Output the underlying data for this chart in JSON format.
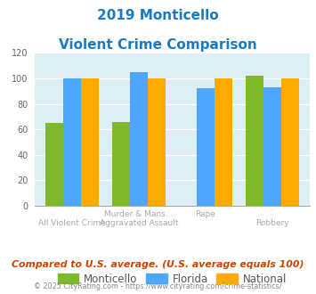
{
  "title_line1": "2019 Monticello",
  "title_line2": "Violent Crime Comparison",
  "monticello": [
    65,
    66,
    0,
    102
  ],
  "florida": [
    100,
    105,
    92,
    93
  ],
  "national": [
    100,
    100,
    100,
    100
  ],
  "monticello_color": "#7db928",
  "florida_color": "#4da6ff",
  "national_color": "#ffaa00",
  "bg_color": "#ddeef5",
  "ylim": [
    0,
    120
  ],
  "yticks": [
    0,
    20,
    40,
    60,
    80,
    100,
    120
  ],
  "legend_labels": [
    "Monticello",
    "Florida",
    "National"
  ],
  "xlabels_row1": [
    "",
    "Murder & Mans...",
    "Rape",
    ""
  ],
  "xlabels_row2": [
    "All Violent Crime",
    "Aggravated Assault",
    "",
    "Robbery"
  ],
  "footnote1": "Compared to U.S. average. (U.S. average equals 100)",
  "footnote2": "© 2025 CityRating.com - https://www.cityrating.com/crime-statistics/",
  "title_color": "#1a7abf",
  "footnote1_color": "#cc4400",
  "footnote2_color": "#888888"
}
